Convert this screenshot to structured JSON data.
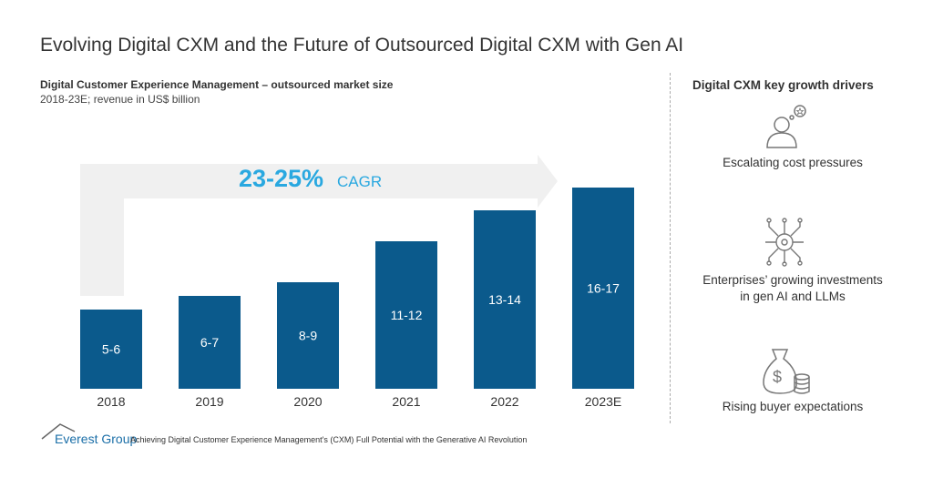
{
  "title": "Evolving Digital CXM and the Future of Outsourced Digital CXM with Gen AI",
  "chart_data": {
    "type": "bar",
    "title": "Digital Customer Experience Management – outsourced market size",
    "subtitle": "2018-23E;  revenue  in US$ billion",
    "categories": [
      "2018",
      "2019",
      "2020",
      "2021",
      "2022",
      "2023E"
    ],
    "ranges": [
      [
        5,
        6
      ],
      [
        6,
        7
      ],
      [
        8,
        9
      ],
      [
        11,
        12
      ],
      [
        13,
        14
      ],
      [
        16,
        17
      ]
    ],
    "data_labels": [
      "5-6",
      "6-7",
      "8-9",
      "11-12",
      "13-14",
      "16-17"
    ],
    "bar_color": "#0b5a8c",
    "annotation": {
      "value": "23-25%",
      "label": "CAGR",
      "color": "#29a8e0"
    }
  },
  "drivers": {
    "title": "Digital CXM key growth drivers",
    "items": [
      {
        "icon": "person-idea-icon",
        "lines": [
          "Escalating cost pressures"
        ]
      },
      {
        "icon": "ai-circuit-icon",
        "lines": [
          "Enterprises’ growing investments",
          "in gen AI and LLMs"
        ]
      },
      {
        "icon": "money-bag-icon",
        "lines": [
          "Rising buyer expectations"
        ]
      }
    ]
  },
  "footer": {
    "logo": "Everest Group",
    "text": "Achieving Digital Customer Experience Management's (CXM) Full Potential with the Generative AI Revolution"
  }
}
